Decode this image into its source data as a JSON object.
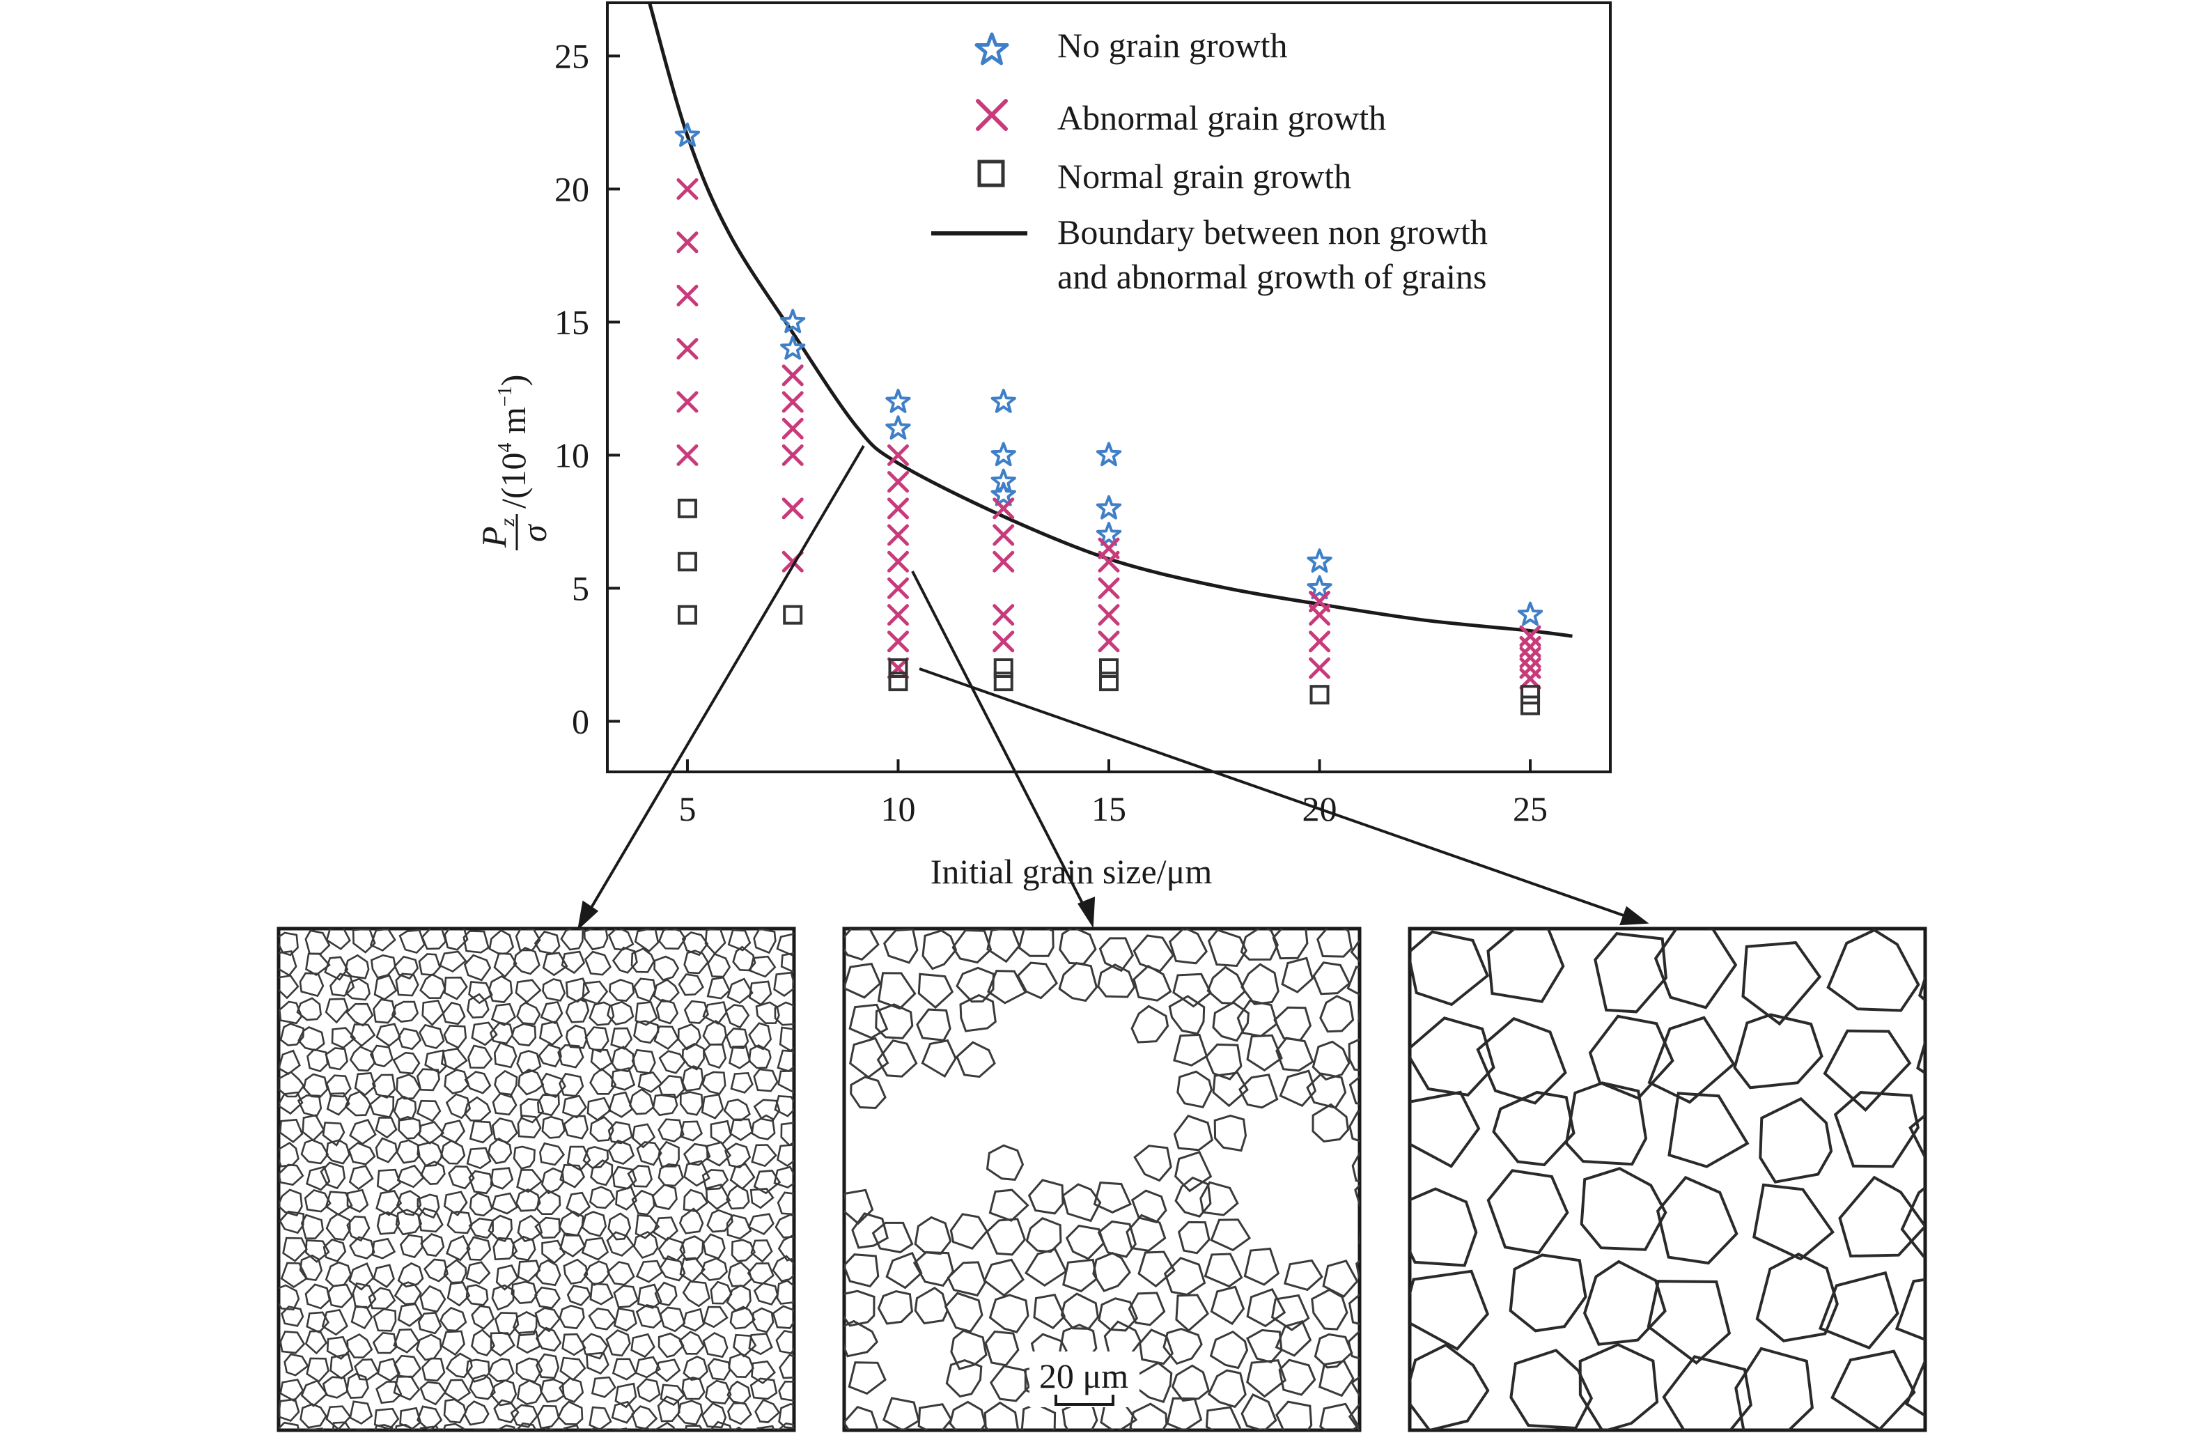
{
  "chart_data": {
    "type": "scatter",
    "title": "",
    "xlabel": "Initial grain size/μm",
    "ylabel": {
      "numerator": "P",
      "numerator_sub": "z",
      "denominator": "σ",
      "suffix_open": "/(10",
      "suffix_exp": "4",
      "suffix_unit": " m",
      "suffix_unit_exp": "−1",
      "suffix_close": ")"
    },
    "xlim": [
      3.1,
      26.9
    ],
    "ylim": [
      -1.9,
      27
    ],
    "xticks": [
      "5",
      "10",
      "15",
      "20",
      "25"
    ],
    "yticks": [
      "0",
      "5",
      "10",
      "15",
      "20",
      "25"
    ],
    "grid": false,
    "legend_position": "top-right",
    "colors": {
      "no_growth": "#3f7fc8",
      "abnormal": "#c83a7a",
      "normal": "#333333",
      "boundary": "#1a1a1a"
    },
    "series": [
      {
        "name": "No grain growth",
        "marker": "star",
        "points": [
          [
            5,
            22
          ],
          [
            7.5,
            15
          ],
          [
            7.5,
            14
          ],
          [
            10,
            12
          ],
          [
            10,
            11
          ],
          [
            12.5,
            12
          ],
          [
            12.5,
            10
          ],
          [
            12.5,
            9
          ],
          [
            12.5,
            8.5
          ],
          [
            15,
            10
          ],
          [
            15,
            8
          ],
          [
            15,
            7
          ],
          [
            20,
            6
          ],
          [
            20,
            5
          ],
          [
            25,
            4
          ]
        ]
      },
      {
        "name": "Abnormal grain growth",
        "marker": "x",
        "points": [
          [
            5,
            20
          ],
          [
            5,
            18
          ],
          [
            5,
            16
          ],
          [
            5,
            14
          ],
          [
            5,
            12
          ],
          [
            5,
            10
          ],
          [
            7.5,
            13
          ],
          [
            7.5,
            12
          ],
          [
            7.5,
            11
          ],
          [
            7.5,
            10
          ],
          [
            7.5,
            8
          ],
          [
            7.5,
            6
          ],
          [
            10,
            10
          ],
          [
            10,
            9
          ],
          [
            10,
            8
          ],
          [
            10,
            7
          ],
          [
            10,
            6
          ],
          [
            10,
            5
          ],
          [
            10,
            4
          ],
          [
            10,
            3
          ],
          [
            10,
            2
          ],
          [
            12.5,
            8
          ],
          [
            12.5,
            7
          ],
          [
            12.5,
            6
          ],
          [
            12.5,
            4
          ],
          [
            12.5,
            3
          ],
          [
            15,
            6.5
          ],
          [
            15,
            6
          ],
          [
            15,
            5
          ],
          [
            15,
            4
          ],
          [
            15,
            3
          ],
          [
            20,
            4.5
          ],
          [
            20,
            4
          ],
          [
            20,
            3
          ],
          [
            20,
            2
          ],
          [
            25,
            3.2
          ],
          [
            25,
            2.8
          ],
          [
            25,
            2.4
          ],
          [
            25,
            2
          ],
          [
            25,
            1.6
          ]
        ]
      },
      {
        "name": "Normal grain growth",
        "marker": "square",
        "points": [
          [
            5,
            8
          ],
          [
            5,
            6
          ],
          [
            5,
            4
          ],
          [
            7.5,
            4
          ],
          [
            10,
            2
          ],
          [
            10,
            1.5
          ],
          [
            12.5,
            2
          ],
          [
            12.5,
            1.5
          ],
          [
            15,
            2
          ],
          [
            15,
            1.5
          ],
          [
            20,
            1
          ],
          [
            25,
            1
          ],
          [
            25,
            0.6
          ]
        ]
      },
      {
        "name": "Boundary between non growth and abnormal growth of grains",
        "marker": "line",
        "points": [
          [
            4.1,
            27
          ],
          [
            5,
            22
          ],
          [
            6,
            18.3
          ],
          [
            7.5,
            14.6
          ],
          [
            9,
            11.1
          ],
          [
            10,
            9.7
          ],
          [
            12.5,
            7.7
          ],
          [
            15,
            6.1
          ],
          [
            17.5,
            5.1
          ],
          [
            20,
            4.4
          ],
          [
            22.5,
            3.8
          ],
          [
            25,
            3.4
          ],
          [
            26,
            3.2
          ]
        ]
      }
    ],
    "legend": {
      "no_growth": "No grain growth",
      "abnormal": "Abnormal grain growth",
      "normal": "Normal grain growth",
      "boundary_line1": "Boundary between non growth",
      "boundary_line2": "and abnormal growth of grains"
    },
    "insets": {
      "middle_scale_label": "20 μm"
    }
  }
}
